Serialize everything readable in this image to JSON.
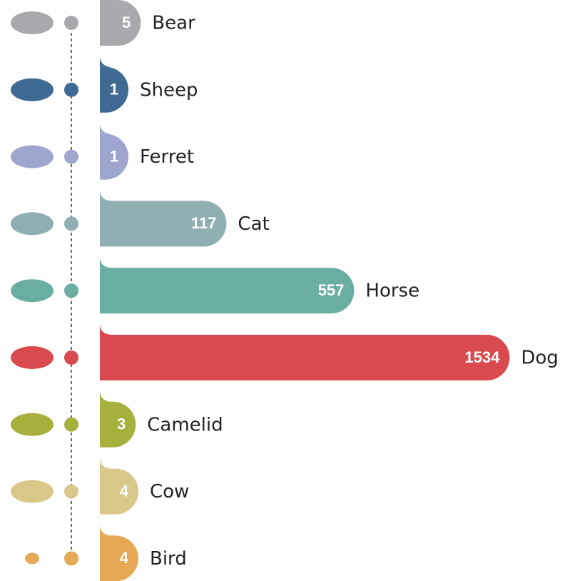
{
  "chart_data": {
    "type": "pill-bar",
    "categories": [
      "Bear",
      "Sheep",
      "Ferret",
      "Cat",
      "Horse",
      "Dog",
      "Camelid",
      "Cow",
      "Bird"
    ],
    "series": [
      {
        "values": [
          5,
          1,
          1,
          117,
          557,
          1534,
          3,
          4,
          4
        ],
        "colors": [
          "#a7a9ac",
          "#3f6a94",
          "#9ea5cf",
          "#8fafb3",
          "#6aaea1",
          "#d94a4e",
          "#a6b03c",
          "#d9c88a",
          "#e6a955"
        ]
      }
    ]
  }
}
